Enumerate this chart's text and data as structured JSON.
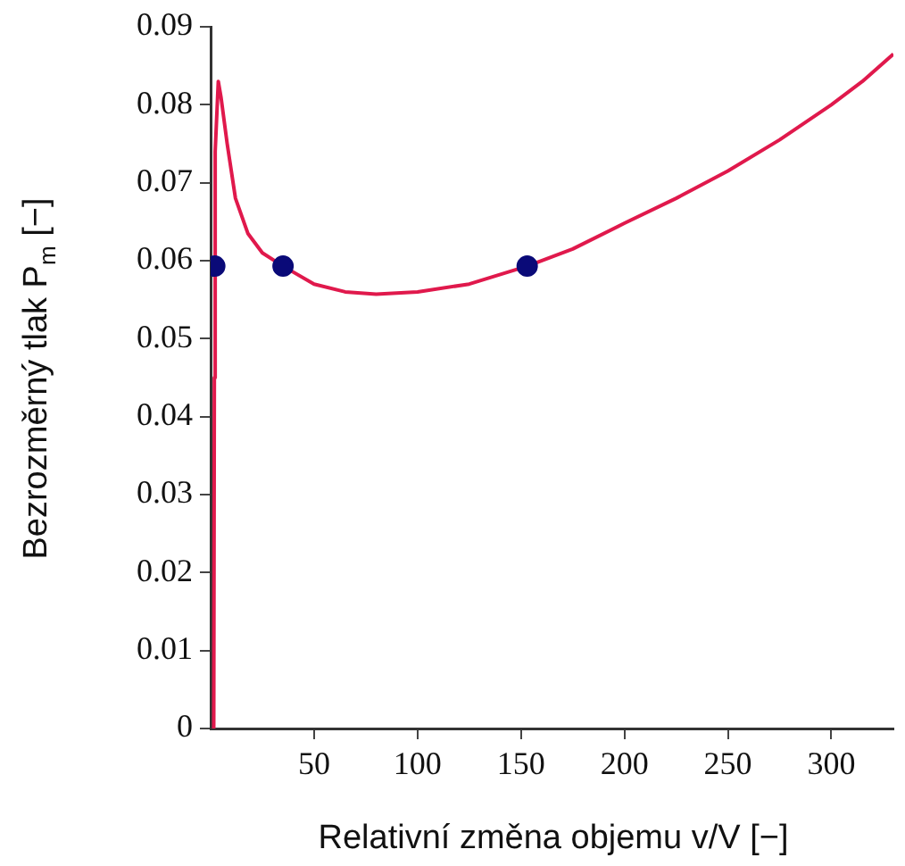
{
  "chart_data": {
    "type": "line",
    "xlabel": "Relativní změna objemu v/V [−]",
    "ylabel": "Bezrozměrný tlak P$_{m}$ [−]",
    "xlim": [
      0,
      330
    ],
    "ylim": [
      0,
      0.09
    ],
    "xticks": [
      50,
      100,
      150,
      200,
      250,
      300
    ],
    "yticks": [
      0,
      0.01,
      0.02,
      0.03,
      0.04,
      0.05,
      0.06,
      0.07,
      0.08,
      0.09
    ],
    "series": [
      {
        "color": "#e0194c",
        "marker": "none",
        "x": [
          1.5,
          1.8,
          2.2,
          3.7,
          5,
          8,
          12,
          18,
          25,
          35,
          50,
          65,
          80,
          100,
          125,
          153,
          175,
          200,
          225,
          250,
          275,
          300,
          315,
          330
        ],
        "values": [
          0,
          0.045,
          0.074,
          0.083,
          0.081,
          0.075,
          0.068,
          0.0635,
          0.061,
          0.0593,
          0.057,
          0.056,
          0.0557,
          0.056,
          0.057,
          0.0593,
          0.0615,
          0.0648,
          0.068,
          0.0715,
          0.0755,
          0.08,
          0.083,
          0.0865
        ]
      },
      {
        "type": "scatter",
        "color": "#0a0a78",
        "marker": "circle",
        "x": [
          2,
          35,
          153
        ],
        "values": [
          0.0593,
          0.0593,
          0.0593
        ]
      }
    ]
  }
}
